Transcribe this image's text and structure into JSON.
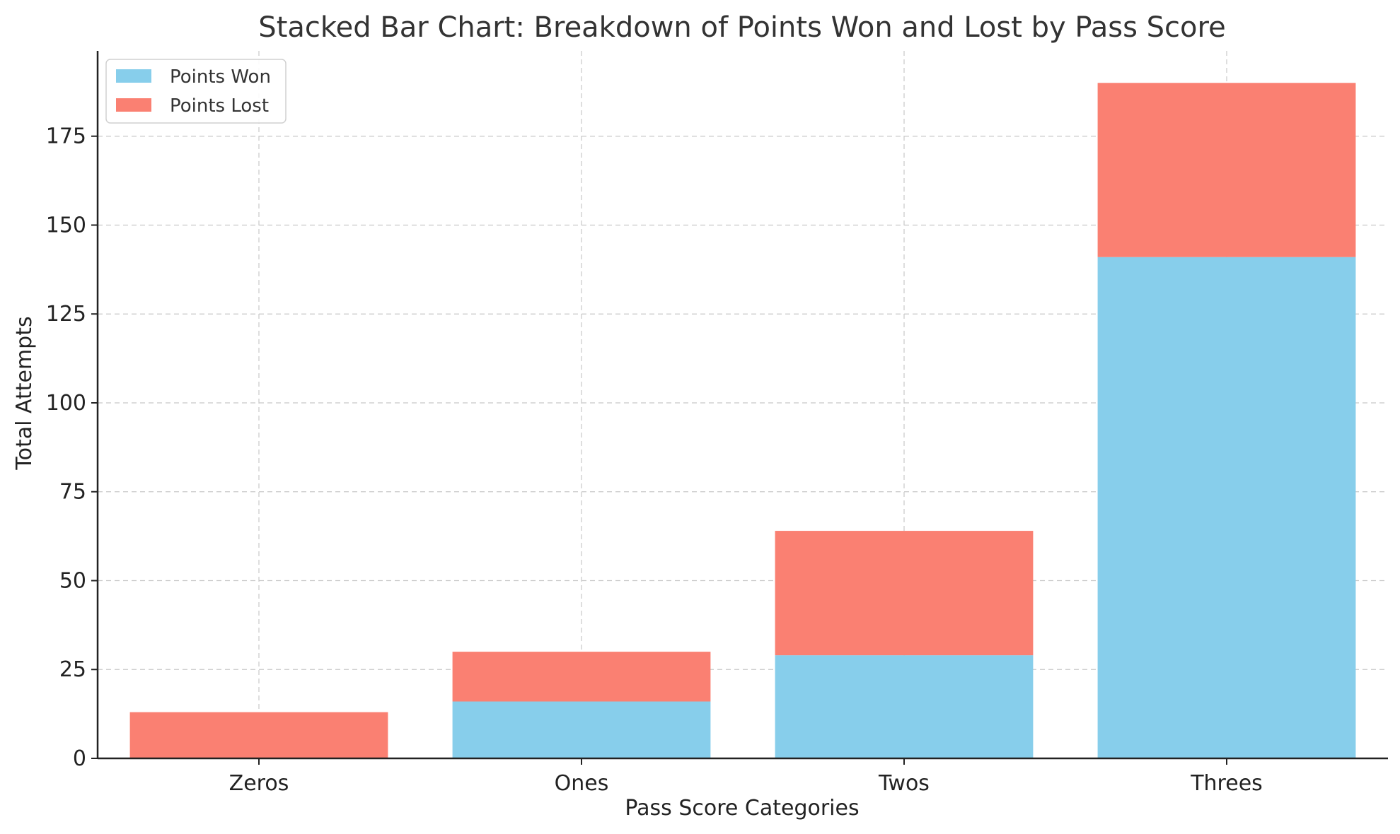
{
  "chart_data": {
    "type": "bar",
    "stacked": true,
    "title": "Stacked Bar Chart: Breakdown of Points Won and Lost by Pass Score",
    "xlabel": "Pass Score Categories",
    "ylabel": "Total Attempts",
    "categories": [
      "Zeros",
      "Ones",
      "Twos",
      "Threes"
    ],
    "series": [
      {
        "name": "Points Won",
        "color": "#87CEEB",
        "values": [
          0,
          16,
          29,
          141
        ]
      },
      {
        "name": "Points Lost",
        "color": "#FA8072",
        "values": [
          13,
          14,
          35,
          49
        ]
      }
    ],
    "ylim": [
      0,
      199
    ],
    "yticks": [
      0,
      25,
      50,
      75,
      100,
      125,
      150,
      175
    ],
    "grid": true,
    "legend_position": "top-left"
  }
}
